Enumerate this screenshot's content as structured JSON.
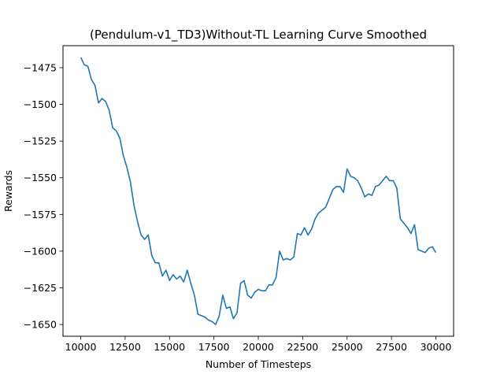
{
  "chart_data": {
    "type": "line",
    "title": "(Pendulum-v1_TD3)Without-TL Learning Curve Smoothed",
    "xlabel": "Number of Timesteps",
    "ylabel": "Rewards",
    "xlim": [
      9000,
      31000
    ],
    "ylim": [
      -1658,
      -1460
    ],
    "xticks": [
      10000,
      12500,
      15000,
      17500,
      20000,
      22500,
      25000,
      27500,
      30000
    ],
    "yticks": [
      -1475,
      -1500,
      -1525,
      -1550,
      -1575,
      -1600,
      -1625,
      -1650
    ],
    "grid": false,
    "line_color": "#1f77b4",
    "series": [
      {
        "x": [
          10000,
          10200,
          10400,
          10600,
          10800,
          11000,
          11200,
          11400,
          11600,
          11800,
          12000,
          12200,
          12400,
          12600,
          12800,
          13000,
          13200,
          13400,
          13600,
          13800,
          14000,
          14200,
          14400,
          14600,
          14800,
          15000,
          15200,
          15400,
          15600,
          15800,
          16000,
          16200,
          16400,
          16600,
          16800,
          17000,
          17200,
          17400,
          17600,
          17800,
          18000,
          18200,
          18400,
          18600,
          18800,
          19000,
          19200,
          19400,
          19600,
          19800,
          20000,
          20200,
          20400,
          20600,
          20800,
          21000,
          21200,
          21400,
          21600,
          21800,
          22000,
          22200,
          22400,
          22600,
          22800,
          23000,
          23200,
          23400,
          23600,
          23800,
          24000,
          24200,
          24400,
          24600,
          24800,
          25000,
          25200,
          25400,
          25600,
          25800,
          26000,
          26200,
          26400,
          26600,
          26800,
          27000,
          27200,
          27400,
          27600,
          27800,
          28000,
          28200,
          28400,
          28600,
          28800,
          29000,
          29200,
          29400,
          29600,
          29800,
          30000
        ],
        "values": [
          -1468,
          -1473,
          -1474,
          -1483,
          -1487,
          -1499,
          -1496,
          -1498,
          -1504,
          -1516,
          -1518,
          -1523,
          -1535,
          -1543,
          -1553,
          -1569,
          -1580,
          -1589,
          -1592,
          -1589,
          -1603,
          -1608,
          -1608,
          -1617,
          -1613,
          -1620,
          -1616,
          -1619,
          -1617,
          -1621,
          -1613,
          -1622,
          -1630,
          -1643,
          -1644,
          -1645,
          -1647,
          -1648,
          -1650,
          -1644,
          -1630,
          -1639,
          -1638,
          -1646,
          -1642,
          -1622,
          -1620,
          -1630,
          -1632,
          -1628,
          -1626,
          -1627,
          -1627,
          -1623,
          -1623,
          -1618,
          -1600,
          -1606,
          -1605,
          -1606,
          -1604,
          -1588,
          -1589,
          -1584,
          -1589,
          -1585,
          -1578,
          -1574,
          -1572,
          -1570,
          -1564,
          -1558,
          -1556,
          -1556,
          -1560,
          -1544,
          -1549,
          -1550,
          -1552,
          -1557,
          -1563,
          -1561,
          -1562,
          -1556,
          -1555,
          -1552,
          -1549,
          -1552,
          -1552,
          -1557,
          -1578,
          -1581,
          -1584,
          -1588,
          -1582,
          -1599,
          -1600,
          -1601,
          -1598,
          -1597,
          -1601
        ]
      }
    ]
  }
}
